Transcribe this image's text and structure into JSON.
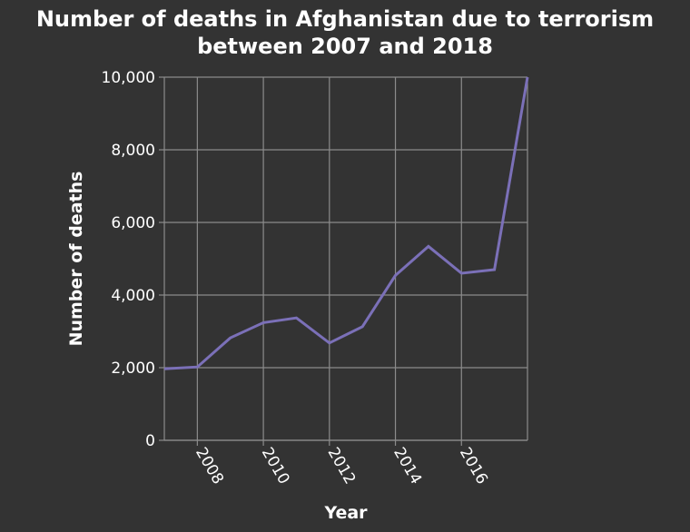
{
  "chart_data": {
    "type": "line",
    "title_lines": [
      "Number of deaths in Afghanistan due to terrorism",
      "between 2007 and 2018"
    ],
    "xlabel": "Year",
    "ylabel": "Number of deaths",
    "xlim": [
      2007,
      2018
    ],
    "ylim": [
      0,
      10000
    ],
    "x_ticks": [
      2008,
      2010,
      2012,
      2014,
      2016
    ],
    "x_tick_labels": [
      "2008",
      "2010",
      "2012",
      "2014",
      "2016"
    ],
    "y_ticks": [
      0,
      2000,
      4000,
      6000,
      8000,
      10000
    ],
    "y_tick_labels": [
      "0",
      "2,000",
      "4,000",
      "6,000",
      "8,000",
      "10,000"
    ],
    "grid": true,
    "series": [
      {
        "x": [
          2007,
          2008,
          2009,
          2010,
          2011,
          2012,
          2013,
          2014,
          2015,
          2016,
          2017,
          2018
        ],
        "values": [
          1970,
          2020,
          2820,
          3240,
          3370,
          2680,
          3130,
          4540,
          5340,
          4600,
          4700,
          10000
        ],
        "color": "#7b70b8"
      }
    ],
    "background": "#333333",
    "grid_color": "#8c8c8c",
    "text_color": "#ffffff"
  }
}
